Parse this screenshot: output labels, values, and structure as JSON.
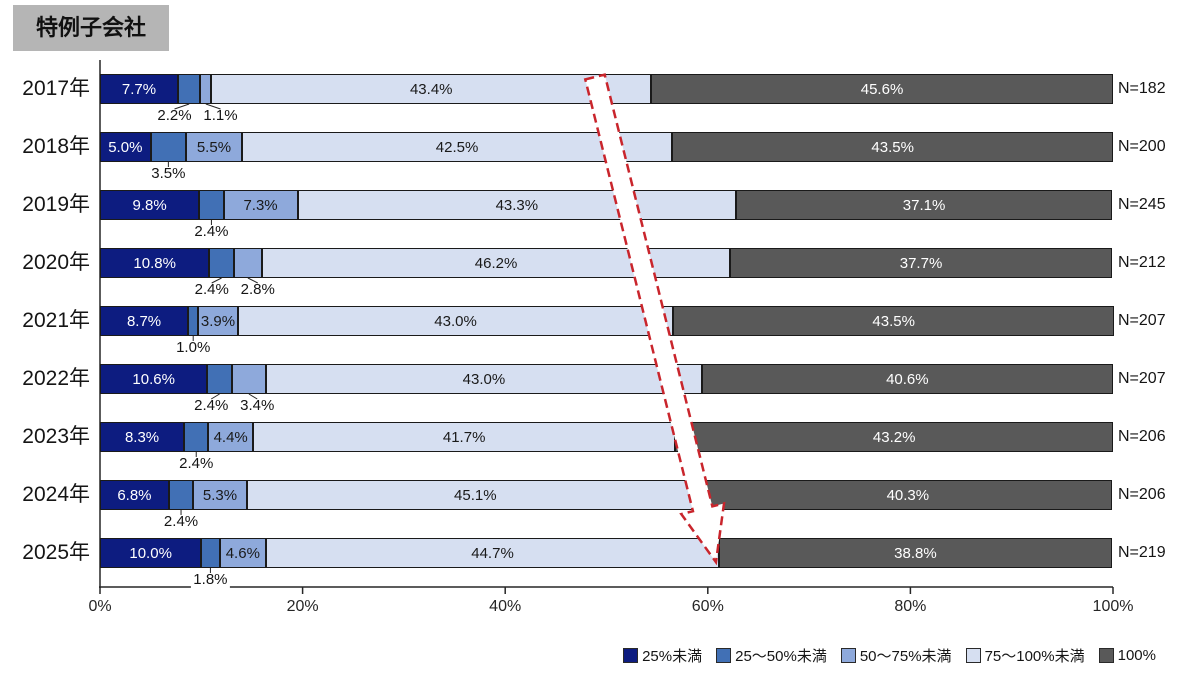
{
  "title": "特例子会社",
  "chart_data": {
    "type": "bar",
    "subtype": "horizontal-stacked-100pct",
    "title": "特例子会社",
    "legend": [
      "25%未満",
      "25〜50%未満",
      "50〜75%未満",
      "75〜100%未満",
      "100%"
    ],
    "legend_position": "bottom-right",
    "colors": [
      "#0d1c80",
      "#4170b5",
      "#8ea9db",
      "#d6dff1",
      "#595959"
    ],
    "segment_text_colors": [
      "#ffffff",
      "#ffffff",
      "#1a1a1a",
      "#1a1a1a",
      "#ffffff"
    ],
    "x_ticks": [
      "0%",
      "20%",
      "40%",
      "60%",
      "80%",
      "100%"
    ],
    "xlim": [
      0,
      100
    ],
    "grid": false,
    "rows": [
      {
        "year": "2017年",
        "n": "N=182",
        "values": [
          7.7,
          2.2,
          1.1,
          43.4,
          45.6
        ],
        "labels": [
          "7.7%",
          "2.2%",
          "1.1%",
          "43.4%",
          "45.6%"
        ],
        "inbar": [
          0,
          3,
          4
        ],
        "callouts": [
          1,
          2
        ]
      },
      {
        "year": "2018年",
        "n": "N=200",
        "values": [
          5.0,
          3.5,
          5.5,
          42.5,
          43.5
        ],
        "labels": [
          "5.0%",
          "3.5%",
          "5.5%",
          "42.5%",
          "43.5%"
        ],
        "inbar": [
          0,
          2,
          3,
          4
        ],
        "callouts": [
          1
        ]
      },
      {
        "year": "2019年",
        "n": "N=245",
        "values": [
          9.8,
          2.4,
          7.3,
          43.3,
          37.1
        ],
        "labels": [
          "9.8%",
          "2.4%",
          "7.3%",
          "43.3%",
          "37.1%"
        ],
        "inbar": [
          0,
          2,
          3,
          4
        ],
        "callouts": [
          1
        ]
      },
      {
        "year": "2020年",
        "n": "N=212",
        "values": [
          10.8,
          2.4,
          2.8,
          46.2,
          37.7
        ],
        "labels": [
          "10.8%",
          "2.4%",
          "2.8%",
          "46.2%",
          "37.7%"
        ],
        "inbar": [
          0,
          3,
          4
        ],
        "callouts": [
          1,
          2
        ]
      },
      {
        "year": "2021年",
        "n": "N=207",
        "values": [
          8.7,
          1.0,
          3.9,
          43.0,
          43.5
        ],
        "labels": [
          "8.7%",
          "1.0%",
          "3.9%",
          "43.0%",
          "43.5%"
        ],
        "inbar": [
          0,
          2,
          3,
          4
        ],
        "callouts": [
          1
        ]
      },
      {
        "year": "2022年",
        "n": "N=207",
        "values": [
          10.6,
          2.4,
          3.4,
          43.0,
          40.6
        ],
        "labels": [
          "10.6%",
          "2.4%",
          "3.4%",
          "43.0%",
          "40.6%"
        ],
        "inbar": [
          0,
          3,
          4
        ],
        "callouts": [
          1,
          2
        ]
      },
      {
        "year": "2023年",
        "n": "N=206",
        "values": [
          8.3,
          2.4,
          4.4,
          41.7,
          43.2
        ],
        "labels": [
          "8.3%",
          "2.4%",
          "4.4%",
          "41.7%",
          "43.2%"
        ],
        "inbar": [
          0,
          2,
          3,
          4
        ],
        "callouts": [
          1
        ]
      },
      {
        "year": "2024年",
        "n": "N=206",
        "values": [
          6.8,
          2.4,
          5.3,
          45.1,
          40.3
        ],
        "labels": [
          "6.8%",
          "2.4%",
          "5.3%",
          "45.1%",
          "40.3%"
        ],
        "inbar": [
          0,
          2,
          3,
          4
        ],
        "callouts": [
          1
        ]
      },
      {
        "year": "2025年",
        "n": "N=219",
        "values": [
          10.0,
          1.8,
          4.6,
          44.7,
          38.8
        ],
        "labels": [
          "10.0%",
          "1.8%",
          "4.6%",
          "44.7%",
          "38.8%"
        ],
        "inbar": [
          0,
          2,
          3,
          4
        ],
        "callouts": [
          1
        ]
      }
    ],
    "annotation": {
      "shape": "dashed-block-arrow",
      "meaning": "downward trend emphasis",
      "color": "#c9252c",
      "fill": "#ffffff",
      "direction": "down-right"
    }
  }
}
